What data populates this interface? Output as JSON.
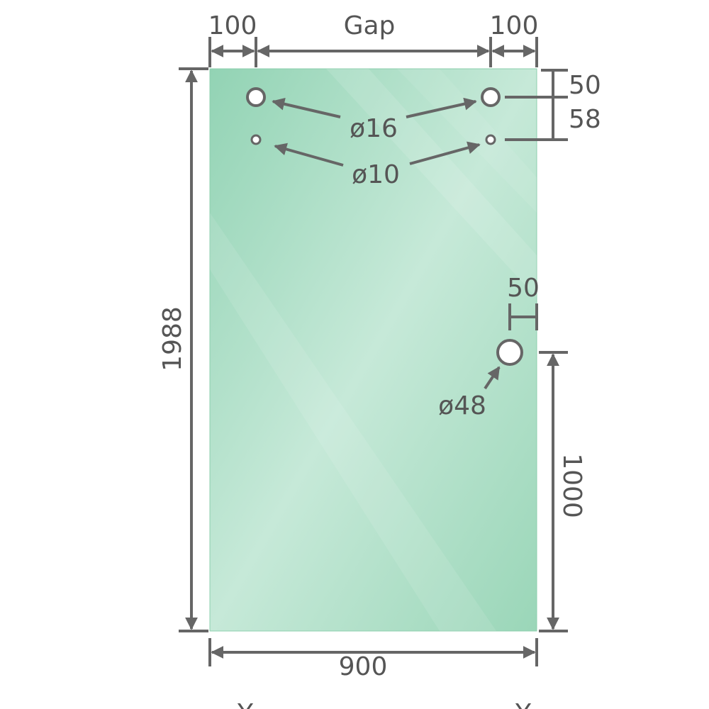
{
  "diagram": {
    "labels": {
      "left_margin": "100",
      "gap": "Gap",
      "right_margin": "100",
      "top_offset": "50",
      "hole_spacing": "58",
      "large_holes": "ø16",
      "small_holes": "ø10",
      "handle_edge_offset": "50",
      "handle_hole": "ø48",
      "handle_height": "1000",
      "height": "1988",
      "width": "900",
      "bottom_mark_left": "Y",
      "bottom_mark_right": "Y"
    },
    "colors": {
      "glass": "#9fd8bd",
      "glass_light": "#c8eadb",
      "dimension_line": "#666666"
    }
  }
}
